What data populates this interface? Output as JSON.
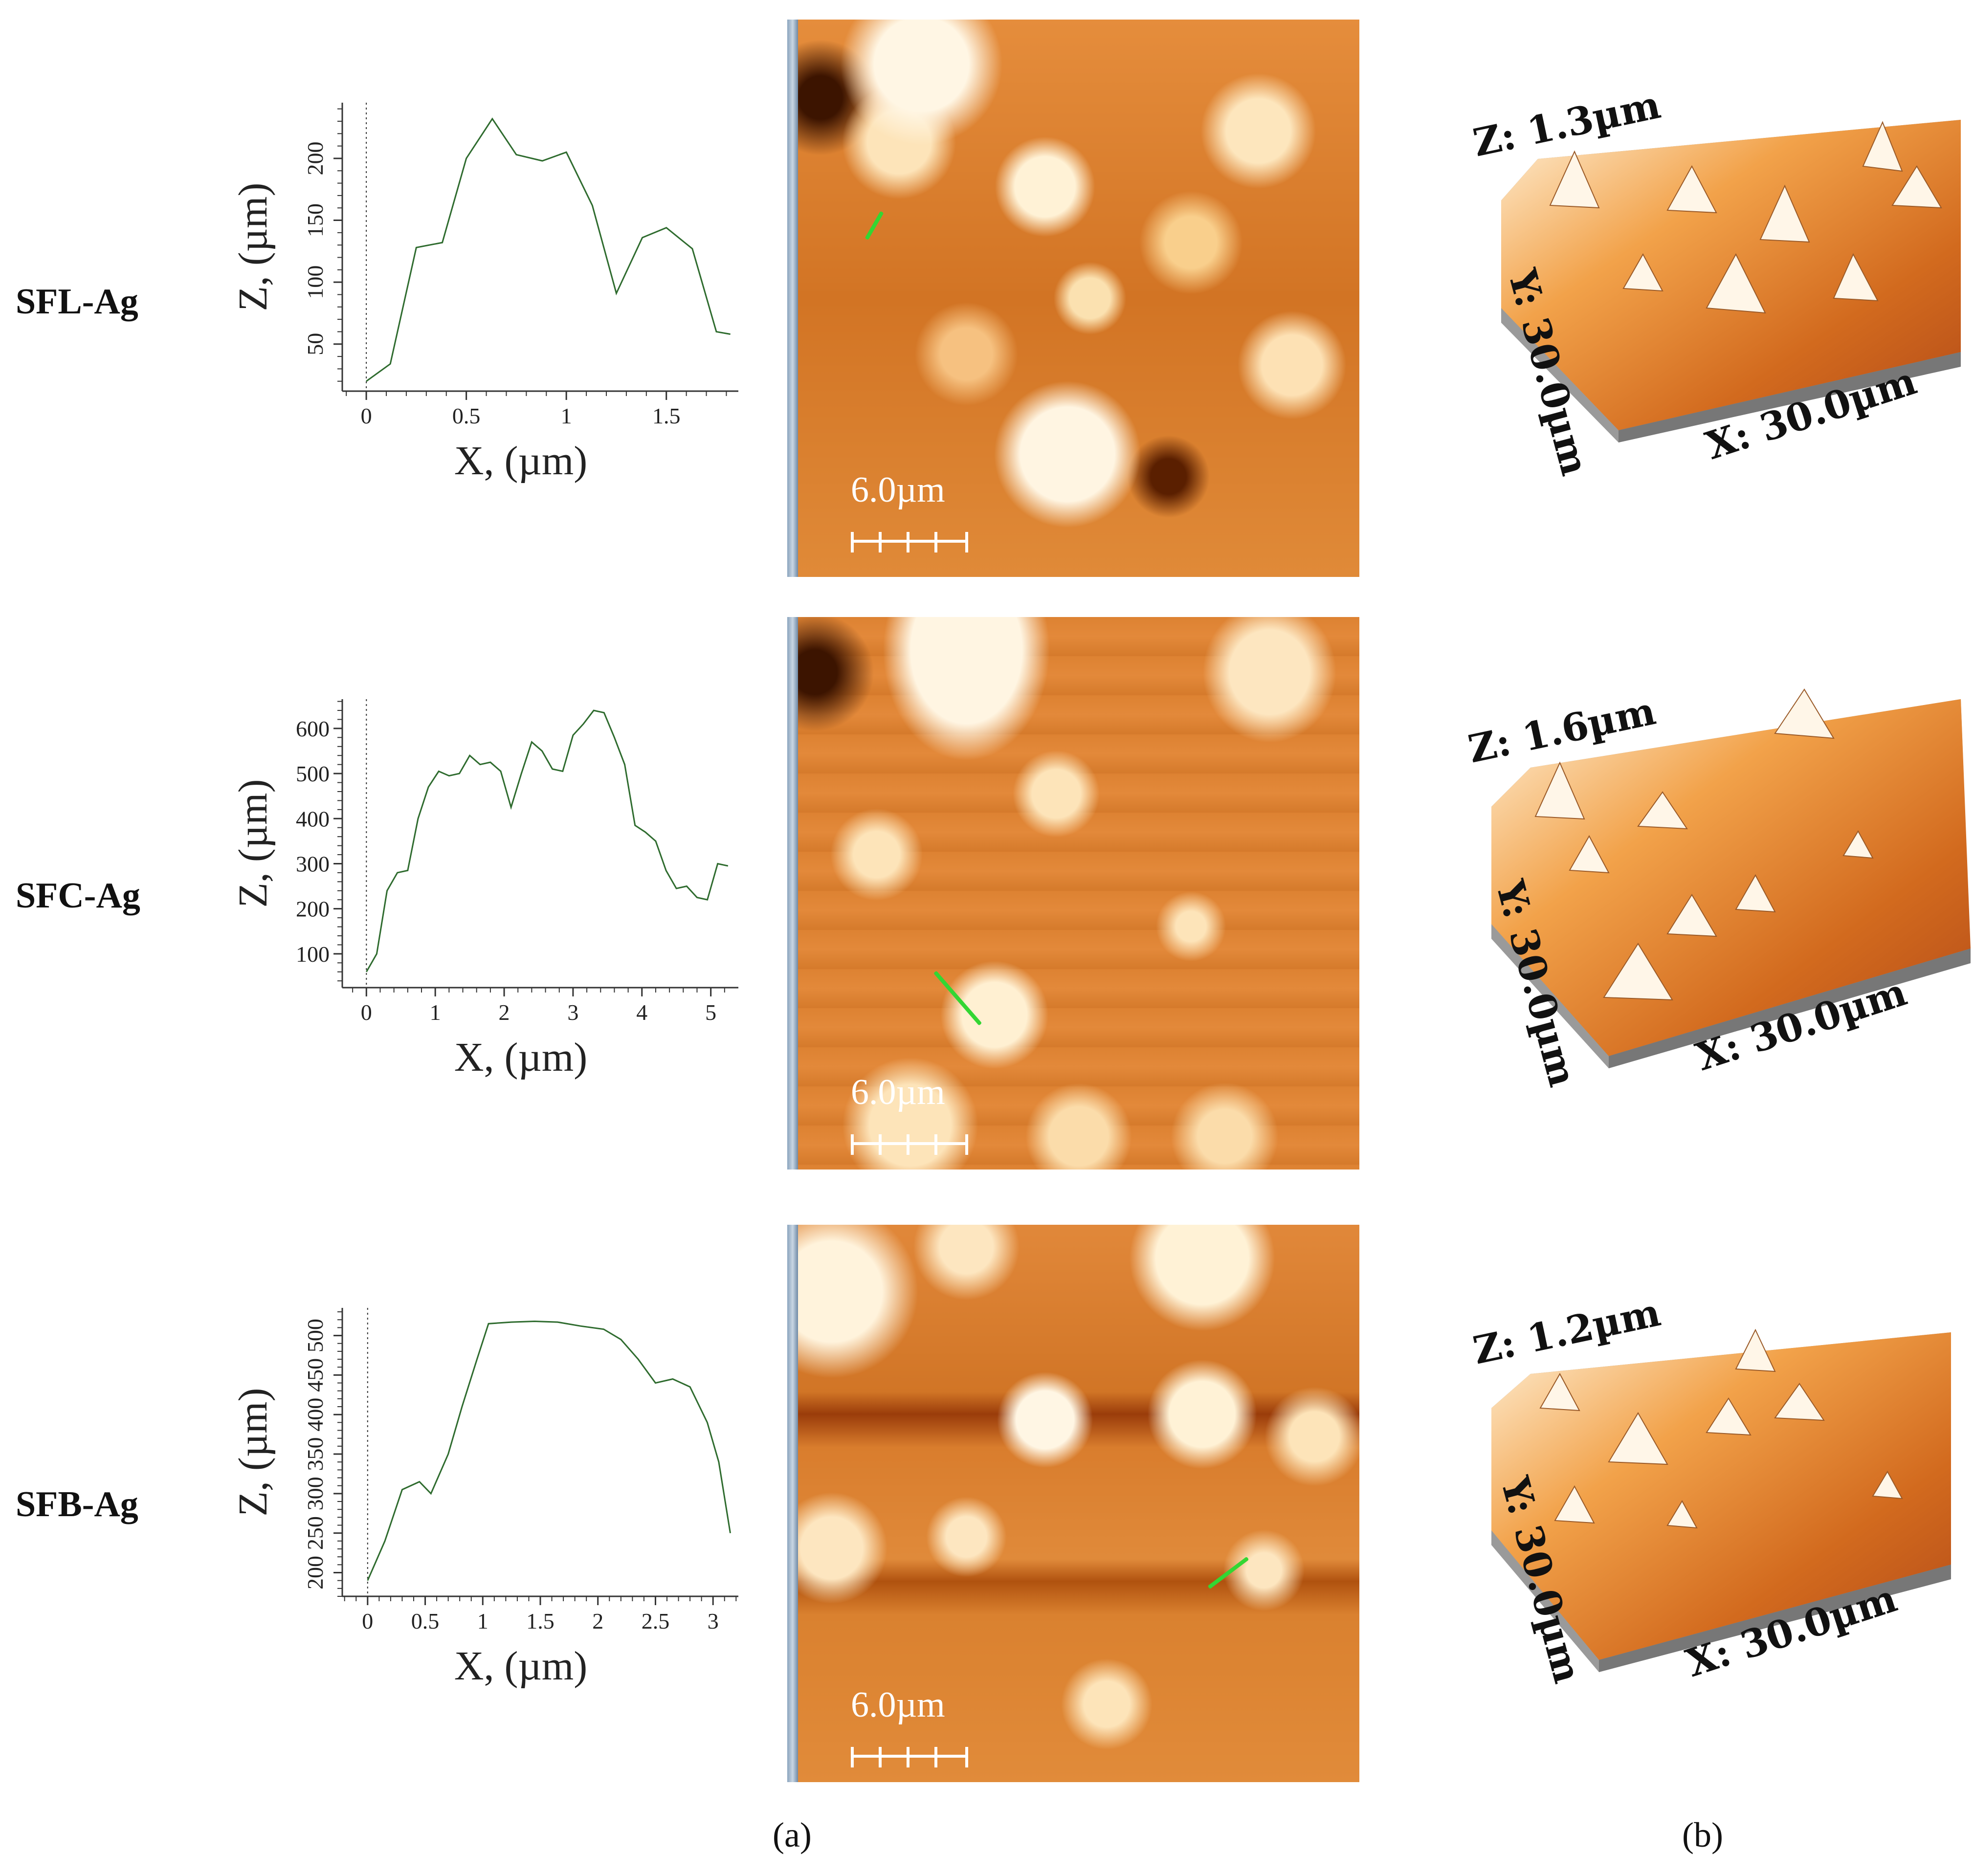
{
  "rows": [
    {
      "label": "SFL-Ag",
      "scale_bar": "6.0µm",
      "z3d": "Z: 1.3µm",
      "y3d": "Y: 30.0µm",
      "x3d": "X: 30.0µm"
    },
    {
      "label": "SFC-Ag",
      "scale_bar": "6.0µm",
      "z3d": "Z: 1.6µm",
      "y3d": "Y: 30.0µm",
      "x3d": "X: 30.0µm"
    },
    {
      "label": "SFB-Ag",
      "scale_bar": "6.0µm",
      "z3d": "Z: 1.2µm",
      "y3d": "Y: 30.0µm",
      "x3d": "X: 30.0µm"
    }
  ],
  "panel_labels": {
    "a": "(a)",
    "b": "(b)"
  },
  "colors": {
    "profile_line": "#2e6b2e",
    "afm_dark": "#7a2e00",
    "afm_mid": "#d77a24",
    "afm_light": "#fff3da",
    "line_marker": "#33d633"
  },
  "chart_data": [
    {
      "type": "line",
      "xlabel": "X, (µm)",
      "ylabel": "Z, (µm)",
      "xlim": [
        -0.12,
        1.86
      ],
      "ylim": [
        12,
        245
      ],
      "xticks": [
        "0",
        "0.5",
        "1",
        "1.5"
      ],
      "xtick_values": [
        0,
        0.5,
        1,
        1.5
      ],
      "yticks": [
        "50",
        "100",
        "150",
        "200"
      ],
      "ytick_values": [
        50,
        100,
        150,
        200
      ],
      "ytick_rotated": true,
      "series": [
        {
          "x": [
            0,
            0.12,
            0.25,
            0.38,
            0.5,
            0.63,
            0.75,
            0.88,
            1.0,
            1.13,
            1.25,
            1.38,
            1.5,
            1.63,
            1.75,
            1.82
          ],
          "y": [
            20,
            34,
            128,
            132,
            200,
            232,
            203,
            198,
            205,
            162,
            91,
            136,
            144,
            127,
            60,
            58
          ]
        }
      ]
    },
    {
      "type": "line",
      "xlabel": "X, (µm)",
      "ylabel": "Z, (µm)",
      "xlim": [
        -0.35,
        5.4
      ],
      "ylim": [
        25,
        665
      ],
      "xticks": [
        "0",
        "1",
        "2",
        "3",
        "4",
        "5"
      ],
      "xtick_values": [
        0,
        1,
        2,
        3,
        4,
        5
      ],
      "yticks": [
        "100",
        "200",
        "300",
        "400",
        "500",
        "600"
      ],
      "ytick_values": [
        100,
        200,
        300,
        400,
        500,
        600
      ],
      "ytick_rotated": false,
      "series": [
        {
          "x": [
            0,
            0.15,
            0.3,
            0.45,
            0.6,
            0.75,
            0.9,
            1.05,
            1.2,
            1.35,
            1.5,
            1.65,
            1.8,
            1.95,
            2.1,
            2.25,
            2.4,
            2.55,
            2.7,
            2.85,
            3.0,
            3.15,
            3.3,
            3.45,
            3.6,
            3.75,
            3.9,
            4.05,
            4.2,
            4.35,
            4.5,
            4.65,
            4.8,
            4.95,
            5.1,
            5.25
          ],
          "y": [
            60,
            100,
            240,
            280,
            285,
            400,
            470,
            505,
            495,
            500,
            540,
            520,
            525,
            505,
            425,
            500,
            570,
            550,
            510,
            505,
            585,
            610,
            640,
            635,
            580,
            520,
            385,
            370,
            350,
            285,
            245,
            250,
            225,
            220,
            300,
            295
          ]
        }
      ]
    },
    {
      "type": "line",
      "xlabel": "X, (µm)",
      "ylabel": "Z, (µm)",
      "xlim": [
        -0.22,
        3.22
      ],
      "ylim": [
        170,
        535
      ],
      "xticks": [
        "0",
        "0.5",
        "1",
        "1.5",
        "2",
        "2.5",
        "3"
      ],
      "xtick_values": [
        0,
        0.5,
        1,
        1.5,
        2,
        2.5,
        3
      ],
      "yticks": [
        "200",
        "250",
        "300",
        "350",
        "400",
        "450",
        "500"
      ],
      "ytick_values": [
        200,
        250,
        300,
        350,
        400,
        450,
        500
      ],
      "ytick_rotated": true,
      "series": [
        {
          "x": [
            0,
            0.15,
            0.3,
            0.45,
            0.55,
            0.7,
            0.82,
            0.95,
            1.05,
            1.25,
            1.45,
            1.65,
            1.85,
            2.05,
            2.2,
            2.35,
            2.5,
            2.65,
            2.8,
            2.95,
            3.05,
            3.15
          ],
          "y": [
            190,
            240,
            305,
            315,
            300,
            350,
            410,
            470,
            515,
            517,
            518,
            517,
            512,
            508,
            495,
            470,
            440,
            445,
            435,
            390,
            340,
            250
          ]
        }
      ]
    }
  ]
}
